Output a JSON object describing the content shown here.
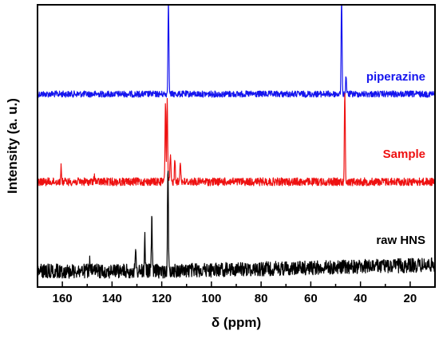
{
  "chart_data": {
    "type": "line",
    "xlabel": "δ (ppm)",
    "ylabel": "Intensity (a. u.)",
    "x_reversed": true,
    "xlim": [
      170,
      10
    ],
    "xticks": [
      160,
      140,
      120,
      100,
      80,
      60,
      40,
      20
    ],
    "yticks_shown": false,
    "grid": false,
    "series": [
      {
        "name": "piperazine",
        "color": "#1515ee",
        "offset": 118,
        "noise": 4,
        "peaks": [
          {
            "x": 117.3,
            "intensity": 125
          },
          {
            "x": 47.6,
            "intensity": 125
          },
          {
            "x": 45.8,
            "intensity": 24
          }
        ]
      },
      {
        "name": "Sample",
        "color": "#ee1111",
        "offset": 228,
        "noise": 5,
        "peaks": [
          {
            "x": 118.5,
            "intensity": 100
          },
          {
            "x": 117.8,
            "intensity": 105
          },
          {
            "x": 116.5,
            "intensity": 35
          },
          {
            "x": 114.7,
            "intensity": 30
          },
          {
            "x": 112.5,
            "intensity": 28
          },
          {
            "x": 160.5,
            "intensity": 18
          },
          {
            "x": 147.0,
            "intensity": 9
          },
          {
            "x": 46.3,
            "intensity": 112
          }
        ]
      },
      {
        "name": "raw HNS",
        "color": "#000000",
        "offset": 340,
        "noise": 9,
        "peaks": [
          {
            "x": 117.5,
            "intensity": 125
          },
          {
            "x": 124.0,
            "intensity": 70
          },
          {
            "x": 126.8,
            "intensity": 44
          },
          {
            "x": 130.5,
            "intensity": 22
          },
          {
            "x": 149.0,
            "intensity": 10
          }
        ]
      }
    ]
  }
}
